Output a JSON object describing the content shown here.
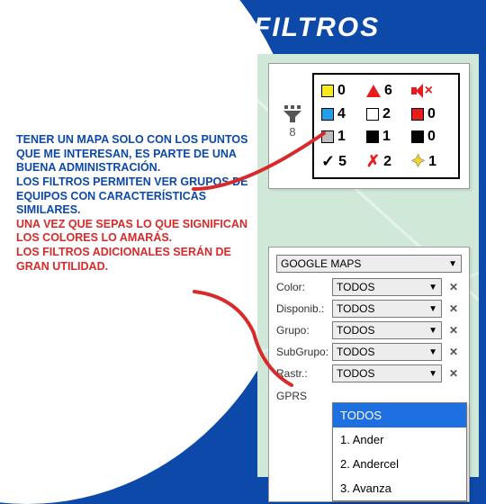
{
  "title": "FILTROS",
  "body_text": [
    "TENER UN MAPA SOLO CON LOS PUNTOS QUE ME INTERESAN, ES PARTE DE UNA BUENA ADMINISTRACIÓN.",
    "LOS FILTROS PERMITEN VER GRUPOS DE EQUIPOS CON CARACTERÍSTICAS SIMILARES.",
    "UNA VEZ QUE SEPAS LO QUE SIGNIFICAN LOS COLORES LO AMARÁS.",
    "LOS FILTROS ADICIONALES SERÁN DE GRAN UTILIDAD."
  ],
  "body_red_indexes": [
    2,
    3
  ],
  "legend": {
    "funnel_count": "8",
    "items": [
      {
        "shape": "square",
        "color": "#f7ea1e",
        "count": "0"
      },
      {
        "shape": "triangle",
        "color": "#e81c1c",
        "count": "6"
      },
      {
        "shape": "mute",
        "color": "#e81c1c",
        "count": ""
      },
      {
        "shape": "square",
        "color": "#1ea0e8",
        "count": "4"
      },
      {
        "shape": "square",
        "color": "#ffffff",
        "count": "2"
      },
      {
        "shape": "square",
        "color": "#e81c1c",
        "count": "0"
      },
      {
        "shape": "square",
        "color": "#bdbdbd",
        "count": "1"
      },
      {
        "shape": "square",
        "color": "#000000",
        "count": "1"
      },
      {
        "shape": "square",
        "color": "#000000",
        "count": "0"
      },
      {
        "shape": "check",
        "color": "#000000",
        "count": "5"
      },
      {
        "shape": "redx",
        "color": "#e81c1c",
        "count": "2"
      },
      {
        "shape": "star",
        "color": "#f3d62a",
        "count": "1"
      }
    ]
  },
  "filters": {
    "map_source": "GOOGLE MAPS",
    "rows": [
      {
        "label": "Color:",
        "value": "TODOS"
      },
      {
        "label": "Disponib.:",
        "value": "TODOS"
      },
      {
        "label": "Grupo:",
        "value": "TODOS"
      },
      {
        "label": "SubGrupo:",
        "value": "TODOS"
      },
      {
        "label": "Rastr.:",
        "value": "TODOS"
      }
    ],
    "gprs_label": "GPRS",
    "dropdown": {
      "options": [
        "TODOS",
        "1. Ander",
        "2. Andercel",
        "3. Avanza"
      ],
      "active_index": 0
    }
  },
  "colors": {
    "brand_blue": "#0c49a8",
    "accent_red": "#d82a2a",
    "map_bg": "#cfe8d8",
    "dropdown_active": "#1e6fe0"
  }
}
